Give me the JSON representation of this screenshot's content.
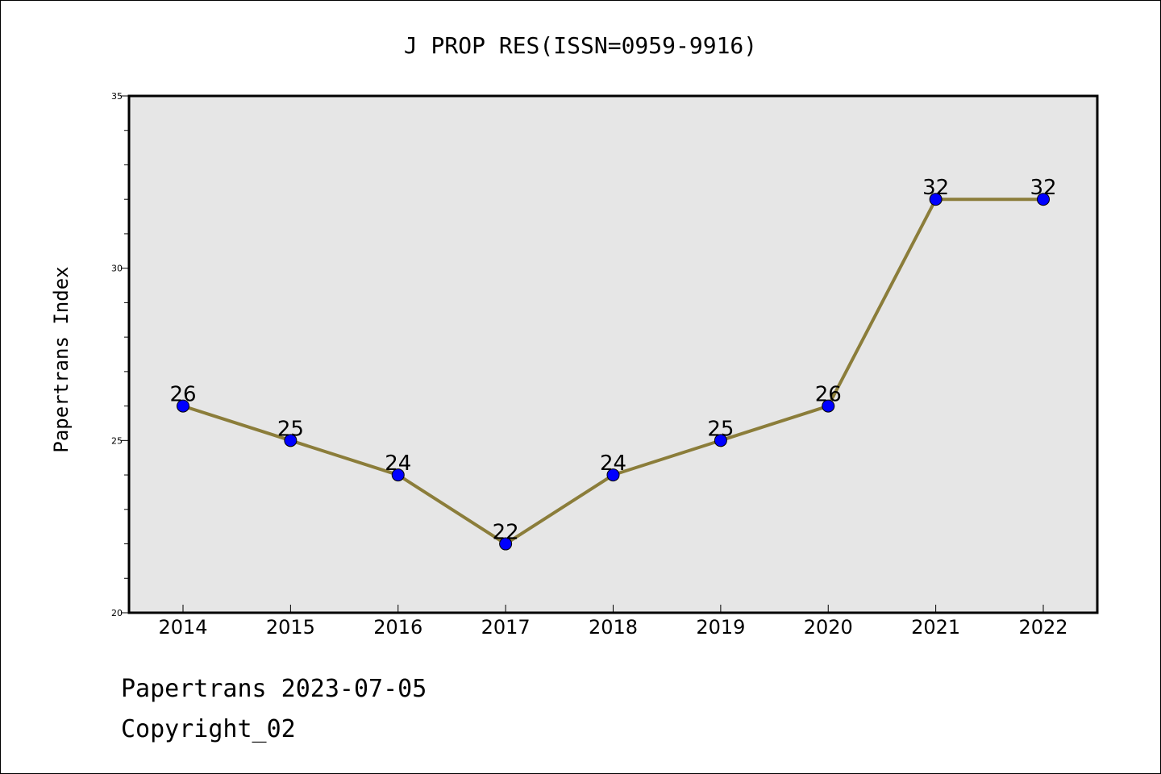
{
  "chart_data": {
    "type": "line",
    "title": "J PROP RES(ISSN=0959-9916)",
    "xlabel": "",
    "ylabel": "Papertrans Index",
    "categories": [
      "2014",
      "2015",
      "2016",
      "2017",
      "2018",
      "2019",
      "2020",
      "2021",
      "2022"
    ],
    "series": [
      {
        "values": [
          26,
          25,
          24,
          22,
          24,
          25,
          26,
          32,
          32
        ]
      }
    ],
    "data_labels": [
      "26",
      "25",
      "24",
      "22",
      "24",
      "25",
      "26",
      "32",
      "32"
    ],
    "ylim": [
      20,
      35
    ],
    "y_tick_labels": [
      "20",
      "25",
      "30",
      "35"
    ],
    "grid": false,
    "legend": "none",
    "colors": {
      "line": "#8b7d3a",
      "marker": "#0000ff",
      "plot_background": "#e6e6e6",
      "axes": "#000000"
    }
  },
  "footer": {
    "line1": "Papertrans 2023-07-05",
    "line2": "Copyright_02"
  }
}
